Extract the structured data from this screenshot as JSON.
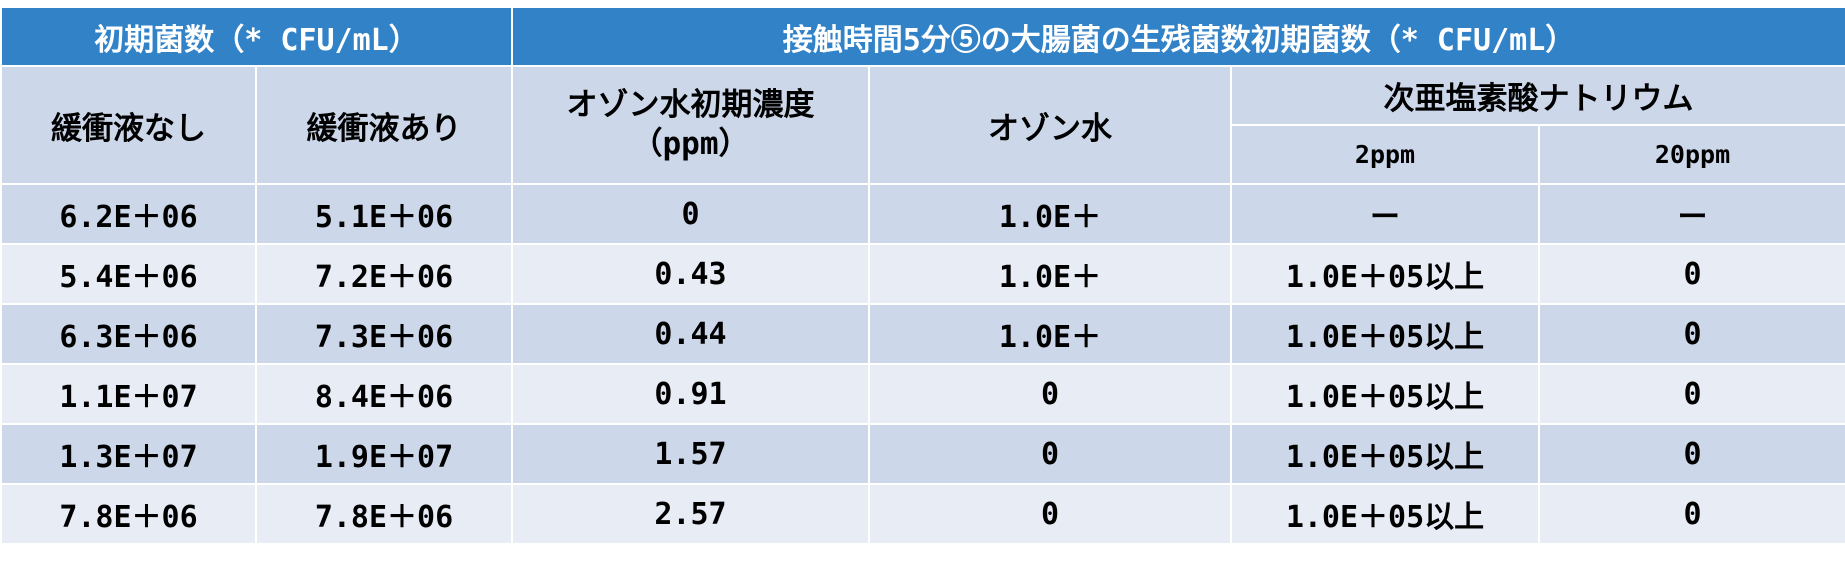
{
  "header": {
    "left": "初期菌数（* CFU/mL）",
    "right": "接触時間5分⑤の大腸菌の生残菌数初期菌数（* CFU/mL）"
  },
  "columns": {
    "no_buffer": "緩衝液なし",
    "with_buffer": "緩衝液あり",
    "ozone_initial_line1": "オゾン水初期濃度",
    "ozone_initial_line2": "（ppm）",
    "ozone_water": "オゾン水",
    "hypochlorite": "次亜塩素酸ナトリウム",
    "ppm2": "2ppm",
    "ppm20": "20ppm"
  },
  "rows": [
    [
      "6.2E＋06",
      "5.1E＋06",
      "0",
      "1.0E＋",
      "ー",
      "ー"
    ],
    [
      "5.4E＋06",
      "7.2E＋06",
      "0.43",
      "1.0E＋",
      "1.0E＋05以上",
      "0"
    ],
    [
      "6.3E＋06",
      "7.3E＋06",
      "0.44",
      "1.0E＋",
      "1.0E＋05以上",
      "0"
    ],
    [
      "1.1E＋07",
      "8.4E＋06",
      "0.91",
      "0",
      "1.0E＋05以上",
      "0"
    ],
    [
      "1.3E＋07",
      "1.9E＋07",
      "1.57",
      "0",
      "1.0E＋05以上",
      "0"
    ],
    [
      "7.8E＋06",
      "7.8E＋06",
      "2.57",
      "0",
      "1.0E＋05以上",
      "0"
    ]
  ],
  "colors": {
    "header_bg": "#3282c8",
    "row_dark": "#ccd8ea",
    "row_light": "#e8ecf5"
  }
}
